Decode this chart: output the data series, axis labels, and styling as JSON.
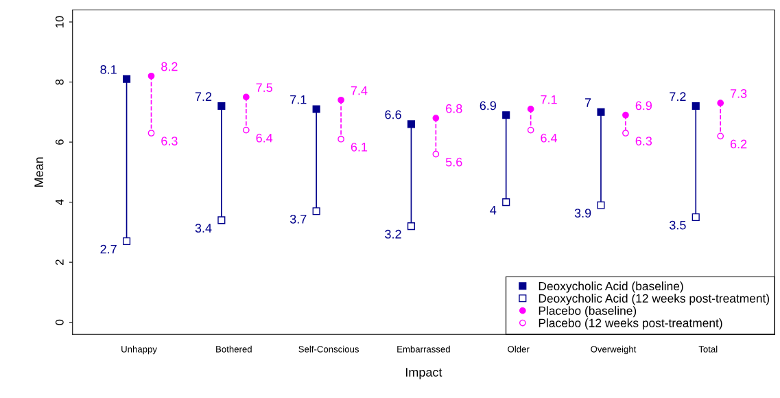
{
  "chart_data": {
    "type": "scatter",
    "xlabel": "Impact",
    "ylabel": "Mean",
    "categories": [
      "Unhappy",
      "Bothered",
      "Self-Conscious",
      "Embarrassed",
      "Older",
      "Overweight",
      "Total"
    ],
    "series": [
      {
        "name": "Deoxycholic Acid (baseline)",
        "color": "#00008b",
        "marker": "square",
        "values": [
          8.1,
          7.2,
          7.1,
          6.6,
          6.9,
          7,
          7.2
        ]
      },
      {
        "name": "Deoxycholic Acid (12 weeks post-treatment)",
        "color": "#00008b",
        "marker": "square",
        "line_style": "solid",
        "values": [
          2.7,
          3.4,
          3.7,
          3.2,
          4,
          3.9,
          3.5
        ]
      },
      {
        "name": "Placebo (baseline)",
        "color": "#ff00ff",
        "marker": "circle",
        "values": [
          8.2,
          7.5,
          7.4,
          6.8,
          7.1,
          6.9,
          7.3
        ]
      },
      {
        "name": "Placebo (12 weeks post-treatment)",
        "color": "#ff00ff",
        "marker": "circle",
        "line_style": "dashed",
        "values": [
          6.3,
          6.4,
          6.1,
          5.6,
          6.4,
          6.3,
          6.2
        ]
      }
    ],
    "ylim": [
      -0.4,
      10.4
    ],
    "yticks": [
      0,
      2,
      4,
      6,
      8,
      10
    ],
    "grid": false,
    "legend": "bottom right",
    "data_labels": true
  }
}
